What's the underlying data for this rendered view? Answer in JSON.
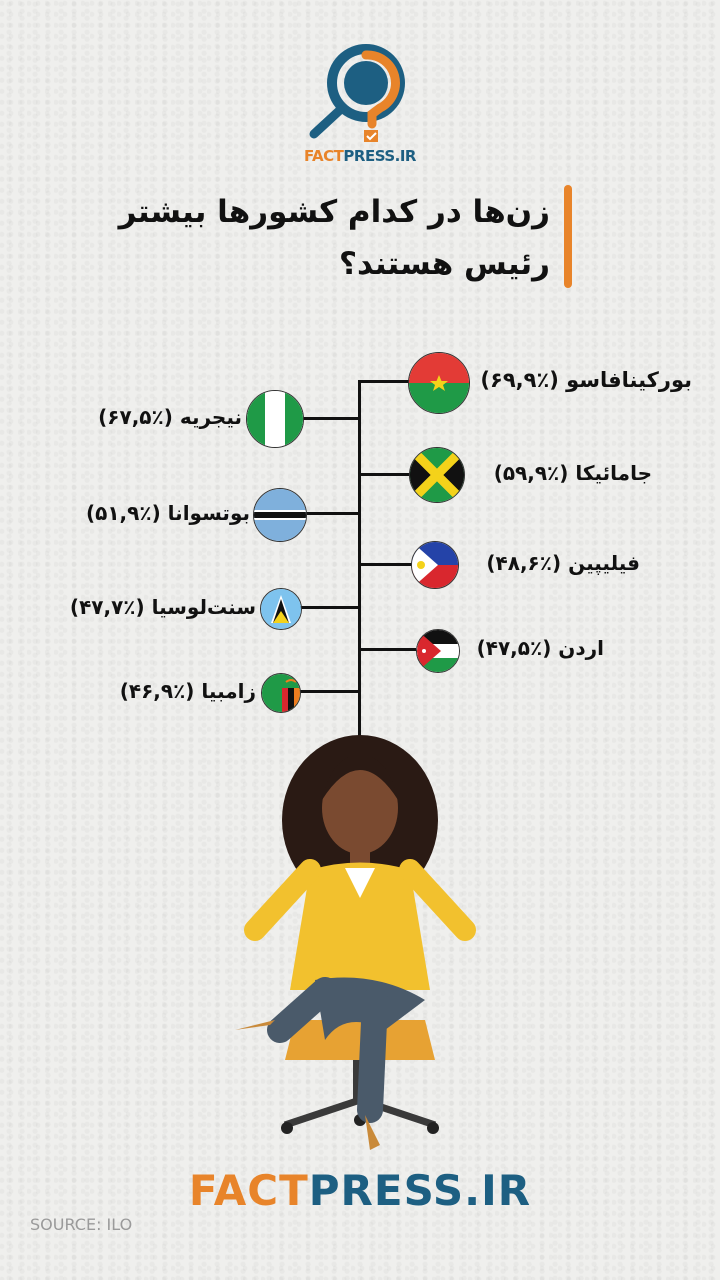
{
  "brand": {
    "logo_part1": "FACT",
    "logo_part2": "PRESS.IR",
    "accent_orange": "#e8842a",
    "accent_blue": "#1d5f82"
  },
  "title": {
    "line1": "زن‌ها در کدام کشورها بیشتر",
    "line2": "رئیس هستند؟"
  },
  "countries_right": [
    {
      "label": "بورکینافاسو (٪۶۹,۹)",
      "flag": "burkina-faso-flag",
      "value": 69.9
    },
    {
      "label": "جامائیکا (٪۵۹,۹)",
      "flag": "jamaica-flag",
      "value": 59.9
    },
    {
      "label": "فیلیپین (٪۴۸,۶)",
      "flag": "philippines-flag",
      "value": 48.6
    },
    {
      "label": "اردن (٪۴۷,۵)",
      "flag": "jordan-flag",
      "value": 47.5
    }
  ],
  "countries_left": [
    {
      "label": "نیجریه (٪۶۷,۵)",
      "flag": "nigeria-flag",
      "value": 67.5
    },
    {
      "label": "بوتسوانا (٪۵۱,۹)",
      "flag": "botswana-flag",
      "value": 51.9
    },
    {
      "label": "سنت‌لوسیا (٪۴۷,۷)",
      "flag": "saint-lucia-flag",
      "value": 47.7
    },
    {
      "label": "زامبیا (٪۴۶,۹)",
      "flag": "zambia-flag",
      "value": 46.9
    }
  ],
  "footer": {
    "part1": "FACT",
    "part2": "PRESS.IR",
    "source": "SOURCE:  ILO"
  }
}
